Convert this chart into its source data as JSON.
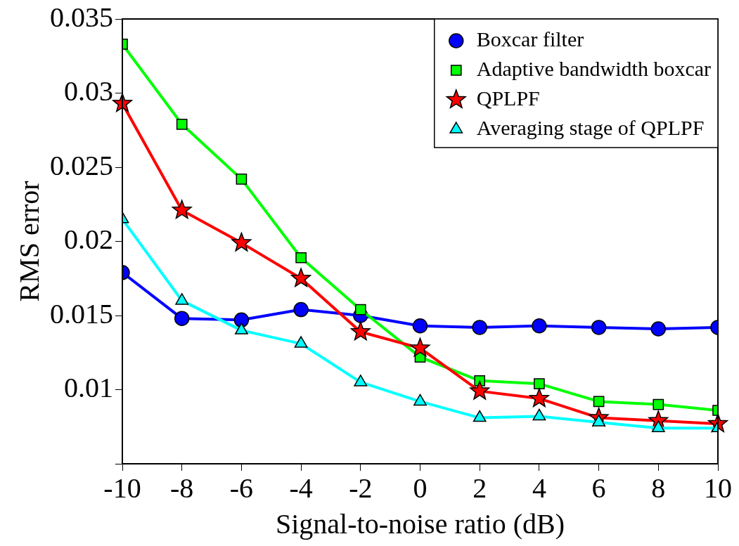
{
  "chart_data": {
    "type": "line",
    "xlabel": "Signal-to-noise ratio (dB)",
    "ylabel": "RMS error",
    "x": [
      -10,
      -8,
      -6,
      -4,
      -2,
      0,
      2,
      4,
      6,
      8,
      10
    ],
    "xlim": [
      -10,
      10
    ],
    "xticks": [
      -10,
      -8,
      -6,
      -4,
      -2,
      0,
      2,
      4,
      6,
      8,
      10
    ],
    "ylim": [
      0.005,
      0.035
    ],
    "yticks": [
      {
        "value": 0.005,
        "label": null
      },
      0.01,
      0.015,
      0.02,
      0.025,
      0.03,
      0.035
    ],
    "grid": false,
    "legend": "top right",
    "line_style": "solid",
    "series": [
      {
        "name": "Boxcar filter",
        "color": "#0000ff",
        "marker": "circle",
        "values": [
          0.0179,
          0.0148,
          0.0147,
          0.0154,
          0.015,
          0.0143,
          0.0142,
          0.0143,
          0.0142,
          0.0141,
          0.0142
        ]
      },
      {
        "name": "Adaptive bandwidth boxcar",
        "color": "#00ff00",
        "marker": "square",
        "values": [
          0.0333,
          0.0279,
          0.0242,
          0.0189,
          0.0154,
          0.0122,
          0.0106,
          0.0104,
          0.0092,
          0.009,
          0.0086
        ]
      },
      {
        "name": "QPLPF",
        "color": "#ff0000",
        "marker": "star",
        "values": [
          0.0293,
          0.0221,
          0.0199,
          0.0175,
          0.0139,
          0.0128,
          0.0099,
          0.0094,
          0.0081,
          0.0079,
          0.0077
        ]
      },
      {
        "name": "Averaging stage of QPLPF",
        "color": "#00ffff",
        "marker": "triangle",
        "values": [
          0.0215,
          0.016,
          0.014,
          0.0131,
          0.0105,
          0.0092,
          0.0081,
          0.0082,
          0.0078,
          0.0074,
          0.0074
        ]
      }
    ]
  }
}
